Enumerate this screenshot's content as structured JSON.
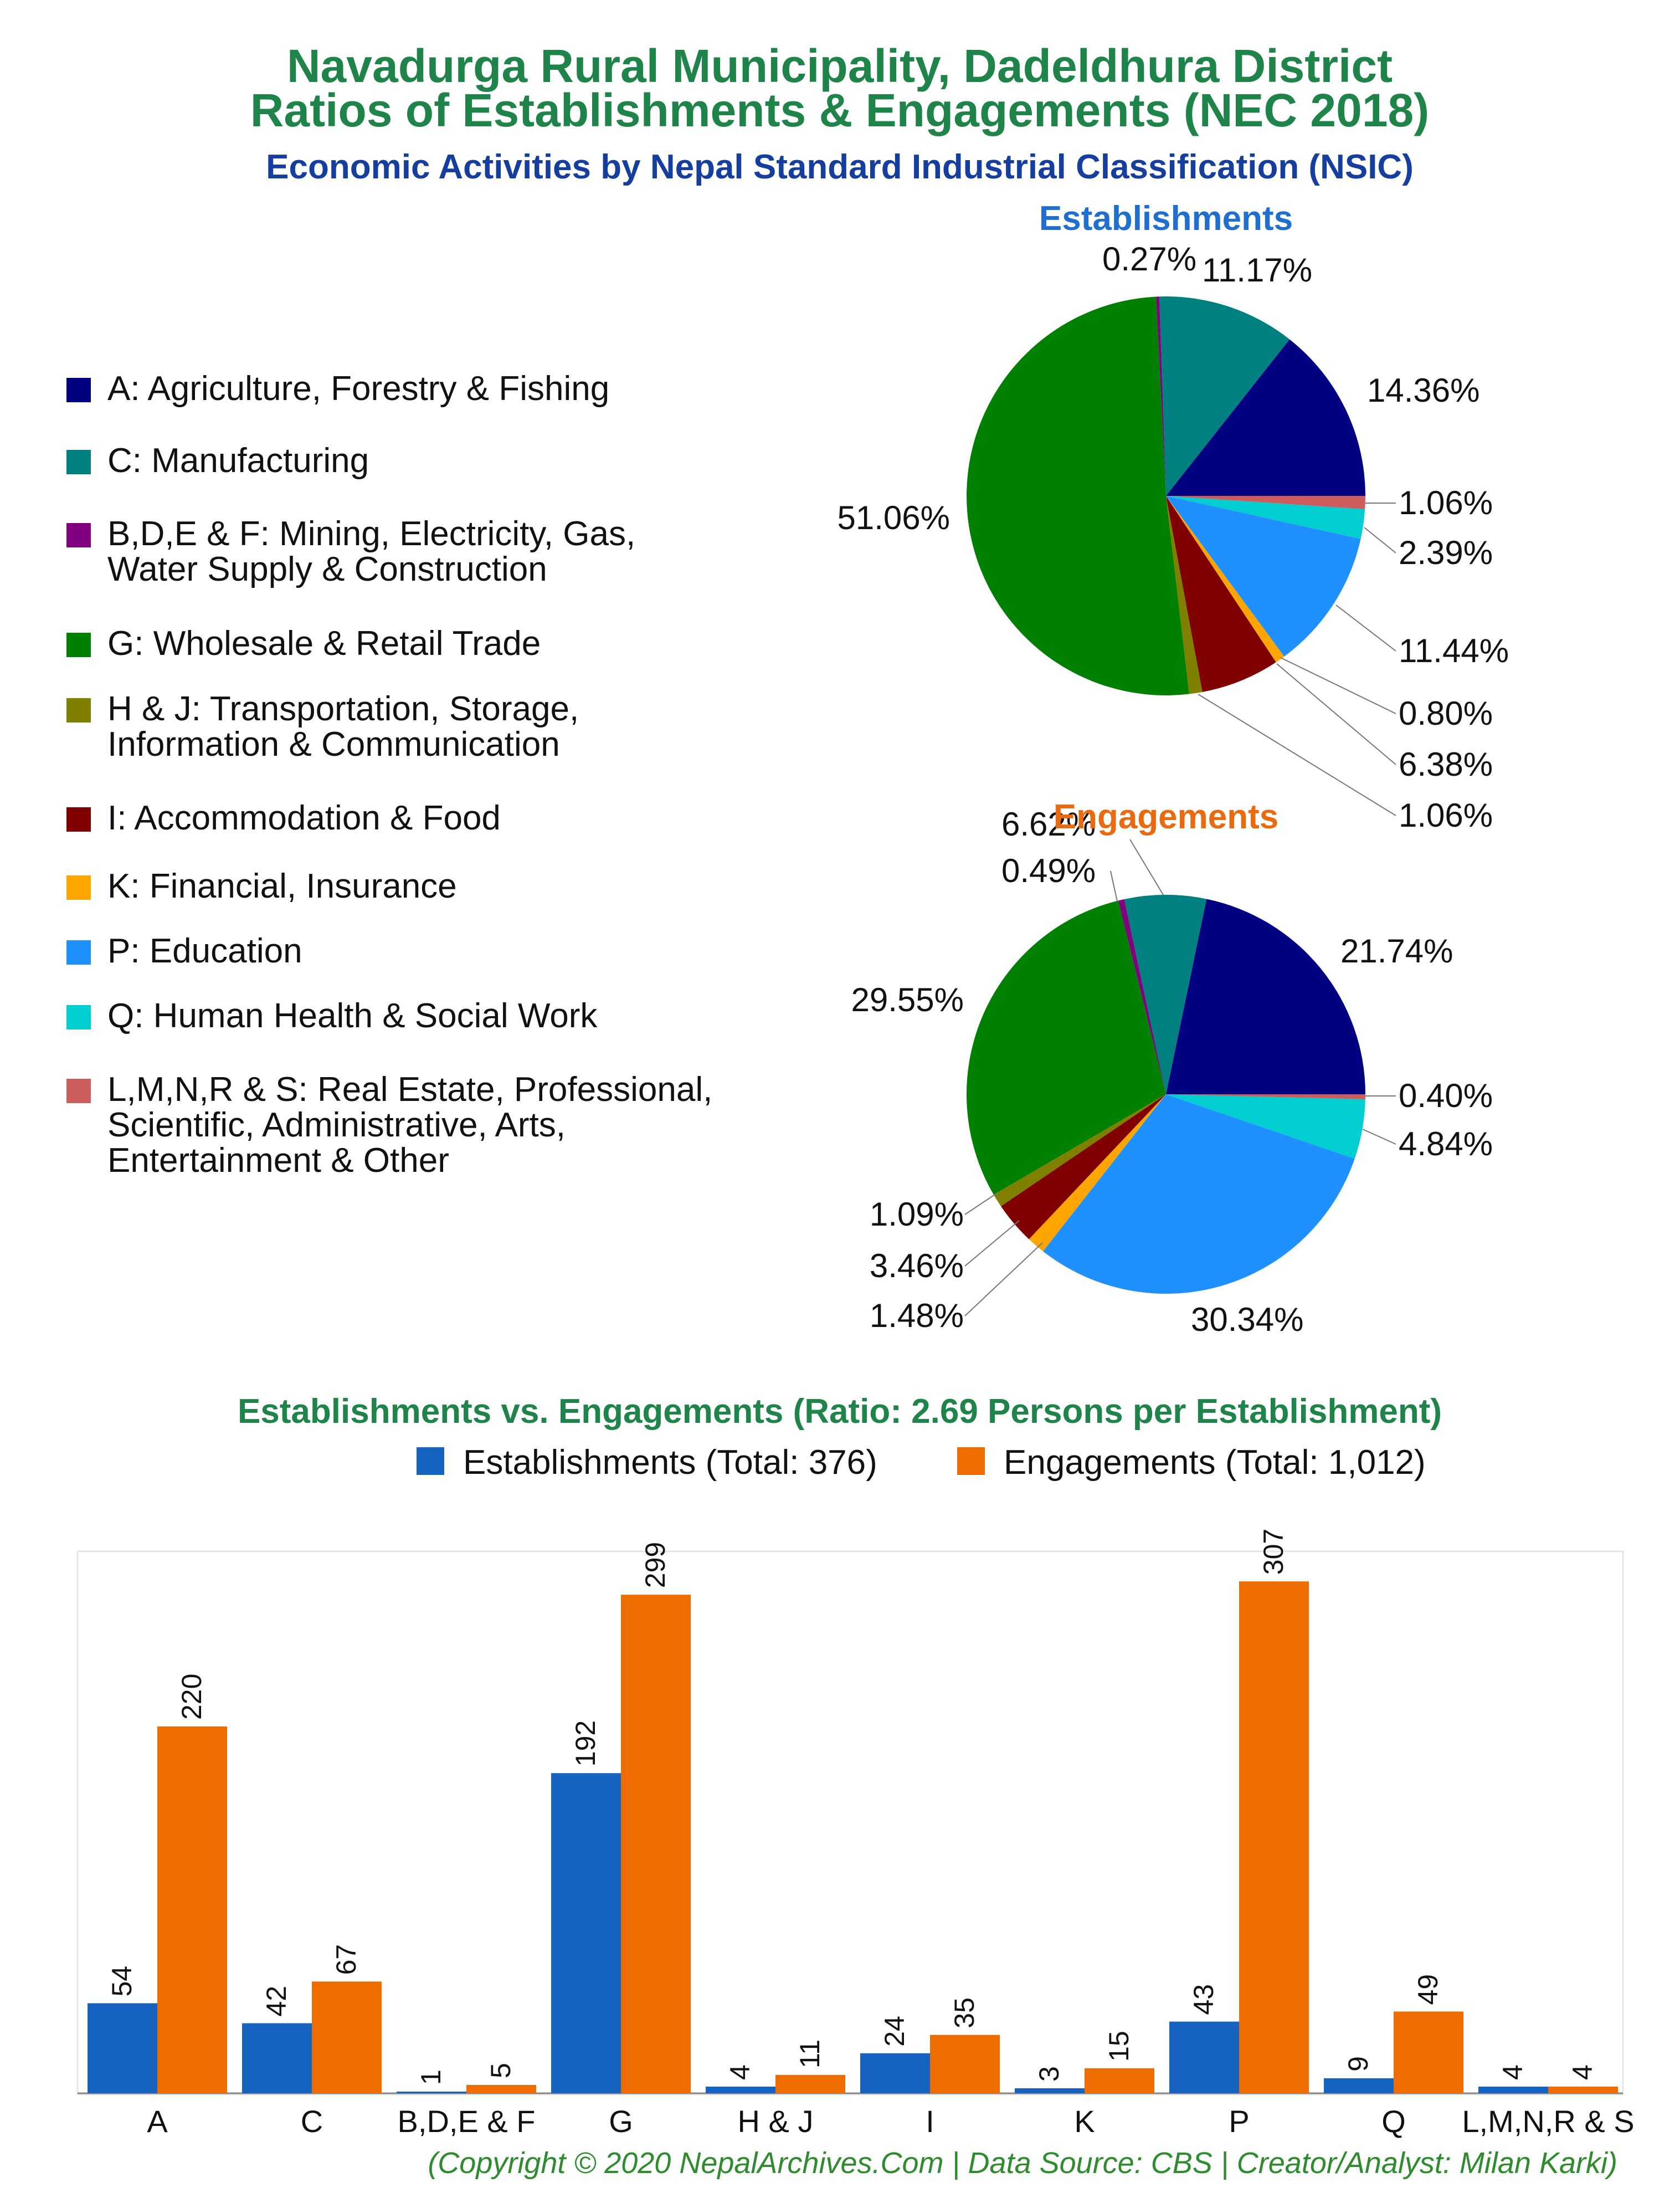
{
  "header": {
    "title_line1": "Navadurga Rural Municipality, Dadeldhura District",
    "title_line2": "Ratios of Establishments & Engagements (NEC 2018)",
    "subtitle": "Economic Activities by Nepal Standard Industrial Classification (NSIC)"
  },
  "colors": {
    "title_green": "#1e8449",
    "subtitle_blue": "#153e9e",
    "establishments_title": "#1f6fd0",
    "engagements_title": "#ea6a10",
    "bar_establishments": "#1763c2",
    "bar_engagements": "#ef6c00",
    "footer_green": "#2e8b2e"
  },
  "legend": {
    "items": [
      {
        "label": "A: Agriculture, Forestry & Fishing",
        "color": "#000080"
      },
      {
        "label": "C: Manufacturing",
        "color": "#008080"
      },
      {
        "label": "B,D,E & F: Mining, Electricity, Gas,\nWater Supply & Construction",
        "color": "#800080"
      },
      {
        "label": "G: Wholesale & Retail Trade",
        "color": "#008000"
      },
      {
        "label": "H & J: Transportation, Storage,\nInformation & Communication",
        "color": "#808000"
      },
      {
        "label": "I: Accommodation & Food",
        "color": "#800000"
      },
      {
        "label": "K: Financial, Insurance",
        "color": "#ffa500"
      },
      {
        "label": "P: Education",
        "color": "#1e90ff"
      },
      {
        "label": "Q: Human Health & Social Work",
        "color": "#00ced1"
      },
      {
        "label": "L,M,N,R & S: Real Estate, Professional,\nScientific, Administrative, Arts,\nEntertainment & Other",
        "color": "#cd5c5c"
      }
    ]
  },
  "chart_data": [
    {
      "type": "pie",
      "title": "Establishments",
      "categories": [
        "A",
        "C",
        "B,D,E & F",
        "G",
        "H & J",
        "I",
        "K",
        "P",
        "Q",
        "L,M,N,R & S"
      ],
      "values": [
        54,
        42,
        1,
        192,
        4,
        24,
        3,
        43,
        9,
        4
      ],
      "labels": [
        "14.36%",
        "11.17%",
        "0.27%",
        "51.06%",
        "1.06%",
        "6.38%",
        "0.80%",
        "11.44%",
        "2.39%",
        "1.06%"
      ]
    },
    {
      "type": "pie",
      "title": "Engagements",
      "categories": [
        "A",
        "C",
        "B,D,E & F",
        "G",
        "H & J",
        "I",
        "K",
        "P",
        "Q",
        "L,M,N,R & S"
      ],
      "values": [
        220,
        67,
        5,
        299,
        11,
        35,
        15,
        307,
        49,
        4
      ],
      "labels": [
        "21.74%",
        "6.62%",
        "0.49%",
        "29.55%",
        "1.09%",
        "3.46%",
        "1.48%",
        "30.34%",
        "4.84%",
        "0.40%"
      ]
    },
    {
      "type": "bar",
      "title": "Establishments vs. Engagements (Ratio: 2.69 Persons per Establishment)",
      "categories": [
        "A",
        "C",
        "B,D,E & F",
        "G",
        "H & J",
        "I",
        "K",
        "P",
        "Q",
        "L,M,N,R & S"
      ],
      "series": [
        {
          "name": "Establishments (Total: 376)",
          "values": [
            54,
            42,
            1,
            192,
            4,
            24,
            3,
            43,
            9,
            4
          ]
        },
        {
          "name": "Engagements (Total: 1,012)",
          "values": [
            220,
            67,
            5,
            299,
            11,
            35,
            15,
            307,
            49,
            4
          ]
        }
      ],
      "ylim": [
        0,
        325
      ],
      "legend": "top-center",
      "grid": false
    }
  ],
  "footer": {
    "text": "(Copyright © 2020 NepalArchives.Com | Data Source: CBS | Creator/Analyst: Milan Karki)"
  }
}
